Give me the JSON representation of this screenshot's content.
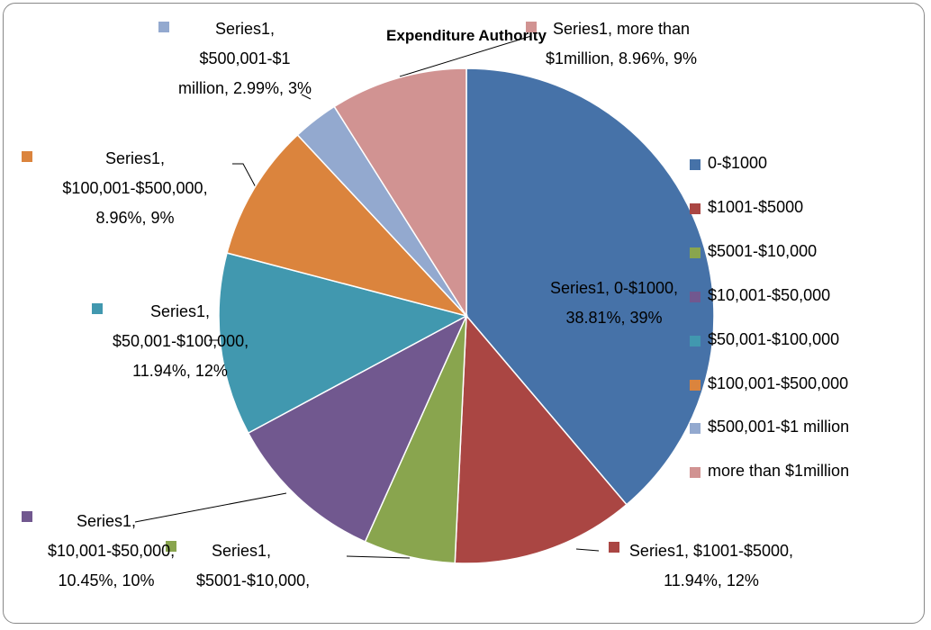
{
  "chart_data": {
    "type": "pie",
    "title": "Expenditure Authority",
    "categories": [
      "0-$1000",
      "$1001-$5000",
      "$5001-$10,000",
      "$10,001-$50,000",
      "$50,001-$100,000",
      "$100,001-$500,000",
      "$500,001-$1 million",
      "more than $1million"
    ],
    "values": [
      38.81,
      11.94,
      5.97,
      10.45,
      11.94,
      8.96,
      2.99,
      8.96
    ],
    "value_labels": [
      "Series1, 0-$1000, 38.81%, 39%",
      "Series1, $1001-$5000, 11.94%, 12%",
      "Series1, $5001-$10,000,",
      "Series1, $10,001-$50,000, 10.45%, 10%",
      "Series1, $50,001-$100,000, 11.94%, 12%",
      "Series1, $100,001-$500,000, 8.96%, 9%",
      "Series1, $500,001-$1 million, 2.99%, 3%",
      "Series1, more than $1million, 8.96%, 9%"
    ],
    "colors": [
      "#4672a8",
      "#aa4643",
      "#89a54e",
      "#71588f",
      "#4198af",
      "#db843d",
      "#93a9cf",
      "#d19392"
    ],
    "legend": "right"
  }
}
